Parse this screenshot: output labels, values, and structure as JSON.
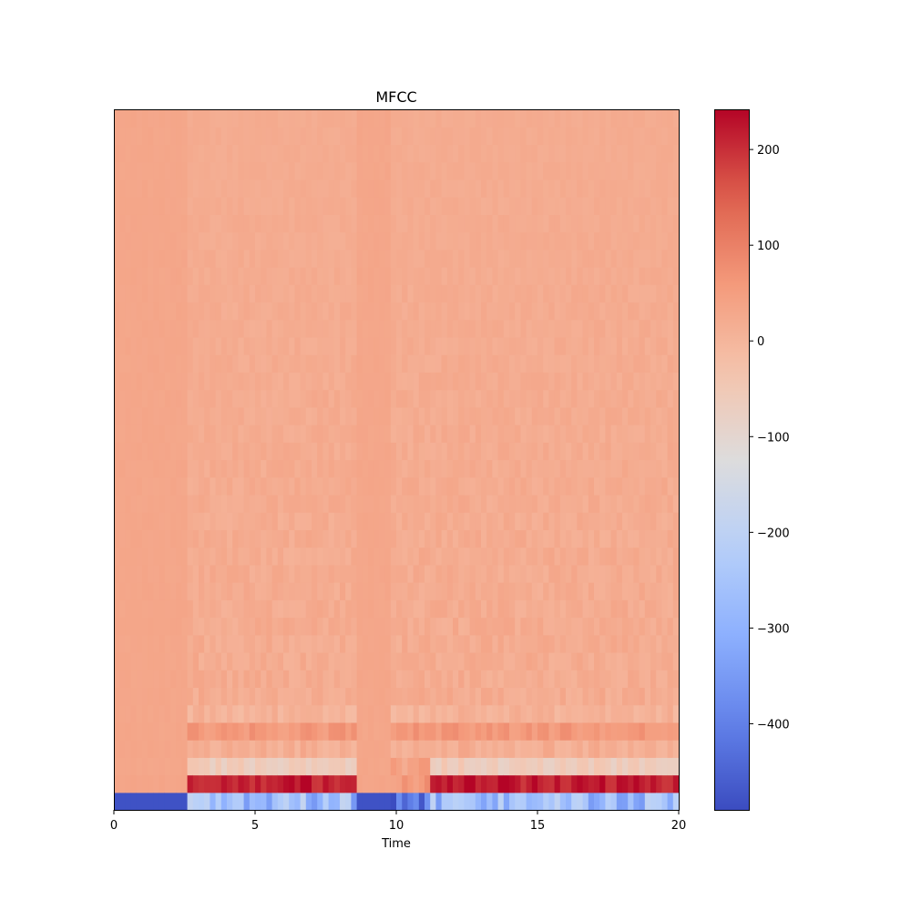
{
  "chart_data": {
    "type": "heatmap",
    "title": "MFCC",
    "xlabel": "Time",
    "ylabel": "",
    "xlim": [
      0,
      20
    ],
    "x_ticks": [
      0,
      5,
      10,
      15,
      20
    ],
    "x_tick_labels": [
      "0",
      "5",
      "10",
      "15",
      "20"
    ],
    "n_coefficients": 40,
    "n_frames": 100,
    "colormap": "coolwarm",
    "vmin": -490,
    "vmax": 242,
    "colorbar_ticks": [
      200,
      100,
      0,
      -100,
      -200,
      -300,
      -400
    ],
    "colorbar_tick_labels": [
      "200",
      "100",
      "0",
      "−100",
      "−200",
      "−300",
      "−400"
    ],
    "silent_segments": [
      [
        0,
        2.6
      ],
      [
        8.6,
        9.8
      ]
    ],
    "transition_segment": [
      9.8,
      11.2
    ],
    "coefficient_means": {
      "c0_active": -270,
      "c0_silent": -480,
      "c1_active": 215,
      "c1_silent": 35,
      "c2_active": -60,
      "c3_active": 15,
      "c4_active": 60,
      "c5_active": 5,
      "higher_active": 20,
      "silent_other": 32
    },
    "colors": {
      "low": "#3b4cc0",
      "mid": "#dddcdc",
      "high": "#b40426"
    }
  }
}
